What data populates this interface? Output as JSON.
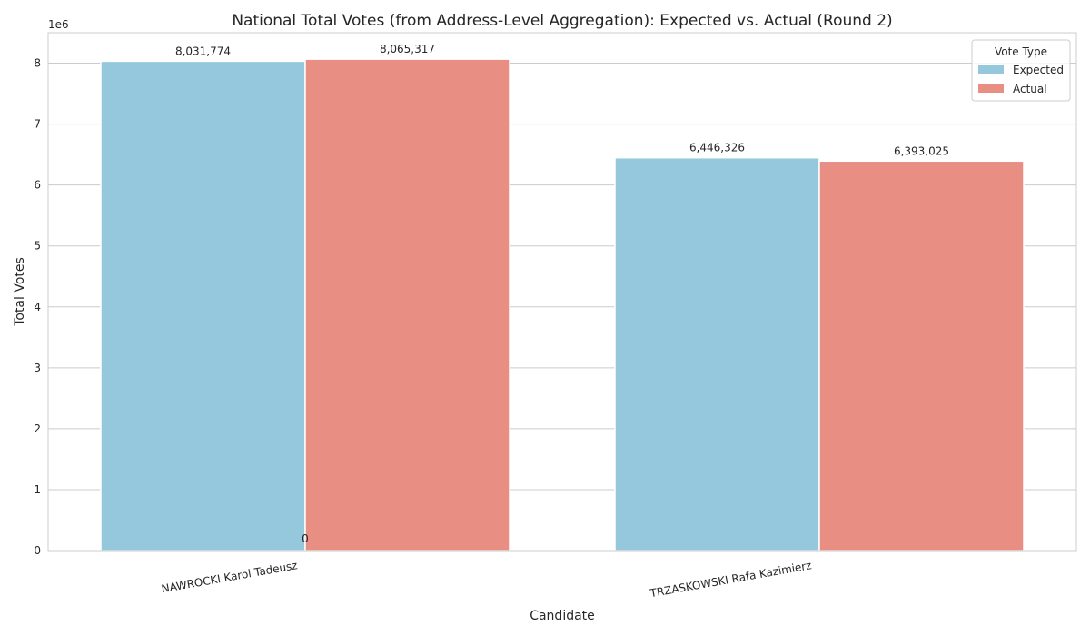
{
  "chart_data": {
    "type": "bar",
    "title": "National Total Votes (from Address-Level Aggregation): Expected vs. Actual (Round 2)",
    "xlabel": "Candidate",
    "ylabel": "Total Votes",
    "offset_text": "1e6",
    "categories": [
      "NAWROCKI Karol Tadeusz",
      "TRZASKOWSKI Rafa Kazimierz"
    ],
    "series": [
      {
        "name": "Expected",
        "color": "#95c8dc",
        "values": [
          8031774,
          6446326
        ],
        "labels": [
          "8,031,774",
          "6,446,326"
        ]
      },
      {
        "name": "Actual",
        "color": "#e88e83",
        "values": [
          8065317,
          6393025
        ],
        "labels": [
          "8,065,317",
          "6,393,025"
        ]
      }
    ],
    "extra_label": "0",
    "ylim": [
      0,
      8500000
    ],
    "yticks": [
      0,
      1,
      2,
      3,
      4,
      5,
      6,
      7,
      8
    ],
    "grid": true,
    "legend": {
      "title": "Vote Type",
      "placement": "top-right"
    }
  }
}
